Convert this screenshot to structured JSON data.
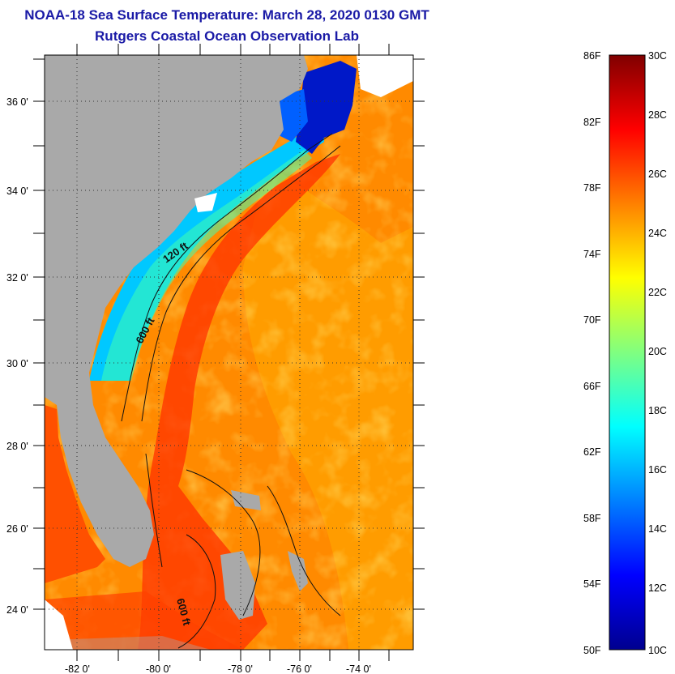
{
  "header": {
    "title": "NOAA-18 Sea Surface Temperature:  March 28, 2020 0130 GMT",
    "subtitle": "Rutgers Coastal Ocean Observation Lab"
  },
  "map": {
    "lat_labels": [
      "36 0'",
      "34 0'",
      "32 0'",
      "30 0'",
      "28 0'",
      "26 0'",
      "24 0'"
    ],
    "lon_labels": [
      "-82 0'",
      "-80 0'",
      "-78 0'",
      "-76 0'",
      "-74 0'"
    ],
    "contour_labels": [
      "120 ft",
      "600 ft",
      "600 ft"
    ],
    "colors": {
      "land": "#a9a9a9",
      "gulf_stream": "#ff4a00",
      "warm_offshore": "#ffa800",
      "shelf": "#00c8ff",
      "cold_coast": "#0010c0"
    }
  },
  "colorbar": {
    "fahrenheit_labels": [
      "86F",
      "82F",
      "78F",
      "74F",
      "70F",
      "66F",
      "62F",
      "58F",
      "54F",
      "50F"
    ],
    "celsius_labels": [
      "30C",
      "28C",
      "26C",
      "24C",
      "22C",
      "20C",
      "18C",
      "16C",
      "14C",
      "12C",
      "10C"
    ],
    "colors": [
      "#00008f",
      "#0000ff",
      "#0080ff",
      "#00ffff",
      "#80ff80",
      "#ffff00",
      "#ff8000",
      "#ff0000",
      "#800000"
    ]
  }
}
